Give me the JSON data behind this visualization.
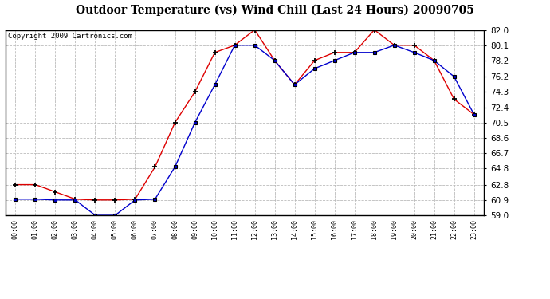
{
  "title": "Outdoor Temperature (vs) Wind Chill (Last 24 Hours) 20090705",
  "copyright": "Copyright 2009 Cartronics.com",
  "hours": [
    "00:00",
    "01:00",
    "02:00",
    "03:00",
    "04:00",
    "05:00",
    "06:00",
    "07:00",
    "08:00",
    "09:00",
    "10:00",
    "11:00",
    "12:00",
    "13:00",
    "14:00",
    "15:00",
    "16:00",
    "17:00",
    "18:00",
    "19:00",
    "20:00",
    "21:00",
    "22:00",
    "23:00"
  ],
  "temp_red": [
    62.8,
    62.8,
    61.9,
    61.0,
    60.9,
    60.9,
    61.0,
    65.0,
    70.5,
    74.3,
    79.2,
    80.1,
    82.0,
    78.2,
    75.2,
    78.2,
    79.2,
    79.2,
    82.0,
    80.1,
    80.1,
    78.2,
    73.4,
    71.5
  ],
  "wind_chill_blue": [
    61.0,
    61.0,
    60.9,
    60.9,
    59.0,
    59.0,
    60.9,
    61.0,
    65.0,
    70.5,
    75.2,
    80.1,
    80.1,
    78.2,
    75.2,
    77.2,
    78.2,
    79.2,
    79.2,
    80.1,
    79.2,
    78.2,
    76.2,
    71.5
  ],
  "ylim": [
    59.0,
    82.0
  ],
  "yticks": [
    59.0,
    60.9,
    62.8,
    64.8,
    66.7,
    68.6,
    70.5,
    72.4,
    74.3,
    76.2,
    78.2,
    80.1,
    82.0
  ],
  "bg_color": "#ffffff",
  "plot_bg_color": "#ffffff",
  "grid_color": "#bbbbbb",
  "red_color": "#dd0000",
  "blue_color": "#0000cc",
  "title_fontsize": 10,
  "copyright_fontsize": 6.5,
  "tick_fontsize": 7.5,
  "xtick_fontsize": 6
}
